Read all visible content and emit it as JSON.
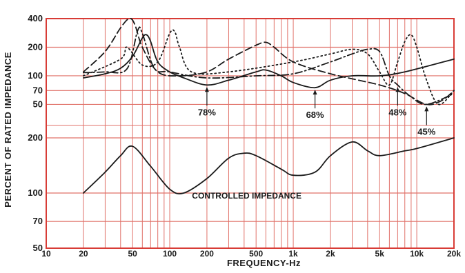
{
  "chart_data": {
    "type": "line",
    "xlabel": "FREQUENCY-Hz",
    "ylabel": "PERCENT OF RATED IMPEDANCE",
    "x_scale": "log",
    "xlim": [
      10,
      20000
    ],
    "x_ticks": [
      {
        "value": 10,
        "label": "10"
      },
      {
        "value": 20,
        "label": "20"
      },
      {
        "value": 50,
        "label": "50"
      },
      {
        "value": 100,
        "label": "100"
      },
      {
        "value": 200,
        "label": "200"
      },
      {
        "value": 500,
        "label": "500"
      },
      {
        "value": 1000,
        "label": "1k"
      },
      {
        "value": 2000,
        "label": "2k"
      },
      {
        "value": 5000,
        "label": "5k"
      },
      {
        "value": 10000,
        "label": "10k"
      },
      {
        "value": 20000,
        "label": "20k"
      }
    ],
    "panels": [
      {
        "name": "upper",
        "y_scale": "log",
        "ylim": [
          30,
          400
        ],
        "y_ticks": [
          {
            "value": 400,
            "label": "400"
          },
          {
            "value": 200,
            "label": "200"
          },
          {
            "value": 100,
            "label": "100"
          },
          {
            "value": 70,
            "label": "70"
          },
          {
            "value": 50,
            "label": "50"
          }
        ],
        "series": [
          {
            "label": "78%",
            "style": "solid",
            "points": [
              [
                20,
                95
              ],
              [
                30,
                105
              ],
              [
                40,
                120
              ],
              [
                50,
                160
              ],
              [
                60,
                250
              ],
              [
                65,
                270
              ],
              [
                70,
                230
              ],
              [
                80,
                140
              ],
              [
                100,
                110
              ],
              [
                130,
                95
              ],
              [
                200,
                80
              ],
              [
                300,
                90
              ],
              [
                500,
                110
              ],
              [
                600,
                115
              ],
              [
                800,
                100
              ],
              [
                1000,
                85
              ],
              [
                1500,
                75
              ],
              [
                2000,
                90
              ],
              [
                3000,
                100
              ],
              [
                5000,
                100
              ],
              [
                8000,
                110
              ],
              [
                20000,
                150
              ]
            ]
          },
          {
            "label": "68%",
            "style": "dash",
            "points": [
              [
                20,
                110
              ],
              [
                30,
                180
              ],
              [
                40,
                320
              ],
              [
                47,
                400
              ],
              [
                52,
                350
              ],
              [
                60,
                200
              ],
              [
                80,
                110
              ],
              [
                120,
                100
              ],
              [
                200,
                110
              ],
              [
                300,
                150
              ],
              [
                500,
                210
              ],
              [
                600,
                225
              ],
              [
                700,
                200
              ],
              [
                1000,
                140
              ],
              [
                2000,
                105
              ],
              [
                5000,
                80
              ],
              [
                8000,
                65
              ],
              [
                12000,
                50
              ],
              [
                16000,
                55
              ],
              [
                20000,
                70
              ]
            ]
          },
          {
            "label": "48%",
            "style": "dashdot",
            "points": [
              [
                20,
                108
              ],
              [
                30,
                110
              ],
              [
                45,
                118
              ],
              [
                55,
                300
              ],
              [
                60,
                280
              ],
              [
                75,
                120
              ],
              [
                100,
                110
              ],
              [
                200,
                95
              ],
              [
                500,
                100
              ],
              [
                1000,
                105
              ],
              [
                2000,
                140
              ],
              [
                3000,
                170
              ],
              [
                4000,
                190
              ],
              [
                5000,
                180
              ],
              [
                6000,
                100
              ],
              [
                7000,
                80
              ],
              [
                9000,
                60
              ],
              [
                12000,
                50
              ],
              [
                20000,
                65
              ]
            ]
          },
          {
            "label": "45%",
            "style": "dot",
            "points": [
              [
                20,
                100
              ],
              [
                40,
                150
              ],
              [
                45,
                200
              ],
              [
                60,
                130
              ],
              [
                80,
                140
              ],
              [
                100,
                280
              ],
              [
                110,
                290
              ],
              [
                120,
                200
              ],
              [
                150,
                110
              ],
              [
                300,
                110
              ],
              [
                1000,
                140
              ],
              [
                2000,
                170
              ],
              [
                3000,
                190
              ],
              [
                4000,
                170
              ],
              [
                5000,
                110
              ],
              [
                6000,
                80
              ],
              [
                7000,
                140
              ],
              [
                8000,
                230
              ],
              [
                9000,
                270
              ],
              [
                10000,
                200
              ],
              [
                12000,
                90
              ],
              [
                15000,
                50
              ],
              [
                20000,
                70
              ]
            ]
          }
        ],
        "annotations": [
          {
            "text": "78%",
            "x": 200,
            "y": 80
          },
          {
            "text": "68%",
            "x": 1500,
            "y": 75
          },
          {
            "text": "48%",
            "x": 7000,
            "y": 80
          },
          {
            "text": "45%",
            "x": 12000,
            "y": 50
          }
        ]
      },
      {
        "name": "lower",
        "y_scale": "log",
        "ylim": [
          50,
          200
        ],
        "y_ticks": [
          {
            "value": 200,
            "label": "200"
          },
          {
            "value": 100,
            "label": "100"
          },
          {
            "value": 70,
            "label": "70"
          },
          {
            "value": 50,
            "label": "50"
          }
        ],
        "series": [
          {
            "label": "CONTROLLED IMPEDANCE",
            "style": "solid",
            "points": [
              [
                20,
                100
              ],
              [
                30,
                130
              ],
              [
                40,
                160
              ],
              [
                50,
                180
              ],
              [
                70,
                140
              ],
              [
                100,
                105
              ],
              [
                130,
                100
              ],
              [
                200,
                120
              ],
              [
                300,
                155
              ],
              [
                400,
                165
              ],
              [
                500,
                160
              ],
              [
                800,
                135
              ],
              [
                1000,
                125
              ],
              [
                1500,
                130
              ],
              [
                2000,
                160
              ],
              [
                3000,
                190
              ],
              [
                4000,
                170
              ],
              [
                5000,
                160
              ],
              [
                8000,
                170
              ],
              [
                10000,
                175
              ],
              [
                20000,
                200
              ]
            ]
          }
        ]
      }
    ],
    "colors": {
      "grid": "#e07068",
      "frame": "#d83c36",
      "curve": "#1a1a1a",
      "text": "#1a1a1a"
    }
  }
}
